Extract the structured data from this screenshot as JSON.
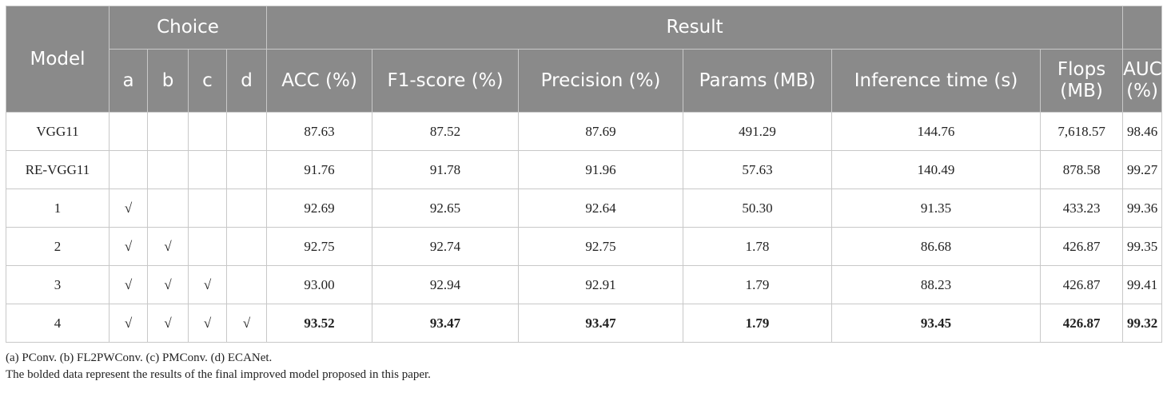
{
  "table": {
    "group_headers": {
      "model": "Model",
      "choice": "Choice",
      "result": "Result"
    },
    "choice_columns": [
      "a",
      "b",
      "c",
      "d"
    ],
    "result_columns": [
      "ACC (%)",
      "F1-score (%)",
      "Precision (%)",
      "Params (MB)",
      "Inference time (s)",
      "Flops\n(MB)"
    ],
    "auc_column": "AUC\n(%)",
    "rows": [
      {
        "model": "VGG11",
        "choices": [
          "",
          "",
          "",
          ""
        ],
        "values": [
          "87.63",
          "87.52",
          "87.69",
          "491.29",
          "144.76",
          "7,618.57",
          "98.46"
        ],
        "bold": false
      },
      {
        "model": "RE-VGG11",
        "choices": [
          "",
          "",
          "",
          ""
        ],
        "values": [
          "91.76",
          "91.78",
          "91.96",
          "57.63",
          "140.49",
          "878.58",
          "99.27"
        ],
        "bold": false
      },
      {
        "model": "1",
        "choices": [
          "√",
          "",
          "",
          ""
        ],
        "values": [
          "92.69",
          "92.65",
          "92.64",
          "50.30",
          "91.35",
          "433.23",
          "99.36"
        ],
        "bold": false
      },
      {
        "model": "2",
        "choices": [
          "√",
          "√",
          "",
          ""
        ],
        "values": [
          "92.75",
          "92.74",
          "92.75",
          "1.78",
          "86.68",
          "426.87",
          "99.35"
        ],
        "bold": false
      },
      {
        "model": "3",
        "choices": [
          "√",
          "√",
          "√",
          ""
        ],
        "values": [
          "93.00",
          "92.94",
          "92.91",
          "1.79",
          "88.23",
          "426.87",
          "99.41"
        ],
        "bold": false
      },
      {
        "model": "4",
        "choices": [
          "√",
          "√",
          "√",
          "√"
        ],
        "values": [
          "93.52",
          "93.47",
          "93.47",
          "1.79",
          "93.45",
          "426.87",
          "99.32"
        ],
        "bold": true
      }
    ]
  },
  "footnotes": [
    "(a) PConv. (b) FL2PWConv. (c) PMConv. (d) ECANet.",
    "The bolded data represent the results of the final improved model proposed in this paper."
  ]
}
